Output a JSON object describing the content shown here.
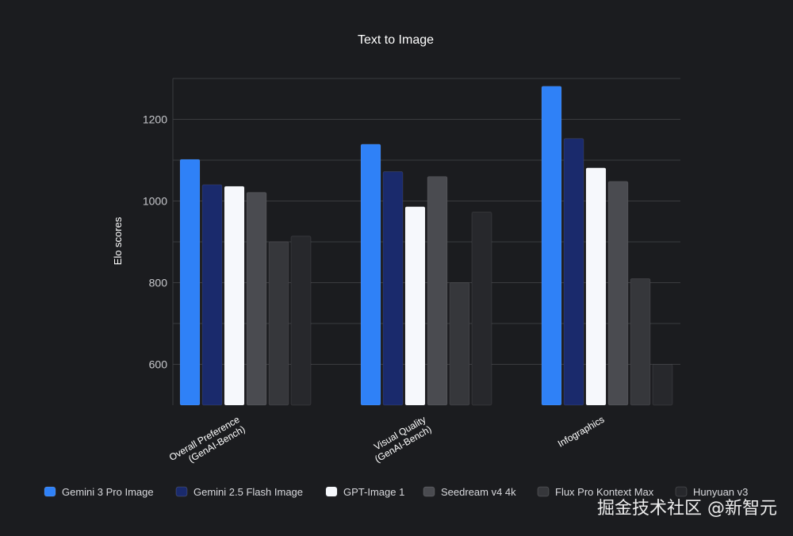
{
  "chart_data": {
    "type": "bar",
    "title": "Text to Image",
    "ylabel": "Elo scores",
    "xlabel": "",
    "ylim": [
      500,
      1300
    ],
    "yticks": [
      600,
      800,
      1000,
      1200
    ],
    "grid": true,
    "legend_position": "bottom",
    "categories": [
      [
        "Overall Preference",
        "(GenAI-Bench)"
      ],
      [
        "Visual Quality",
        "(GenAI-Bench)"
      ],
      [
        "Infographics"
      ]
    ],
    "series": [
      {
        "name": "Gemini 3 Pro Image",
        "color": "#2f81f7",
        "values": [
          1102,
          1139,
          1281
        ]
      },
      {
        "name": "Gemini 2.5 Flash Image",
        "color": "#1a2a6c",
        "values": [
          1040,
          1072,
          1153
        ]
      },
      {
        "name": "GPT-Image 1",
        "color": "#f6f8fc",
        "values": [
          1036,
          986,
          1081
        ]
      },
      {
        "name": "Seedream v4 4k",
        "color": "#4a4b50",
        "values": [
          1021,
          1060,
          1048
        ]
      },
      {
        "name": "Flux Pro Kontext Max",
        "color": "#36373b",
        "values": [
          900,
          800,
          810
        ]
      },
      {
        "name": "Hunyuan v3",
        "color": "#27282c",
        "values": [
          914,
          973,
          600
        ]
      }
    ]
  },
  "watermark": "掘金技术社区 @新智元"
}
